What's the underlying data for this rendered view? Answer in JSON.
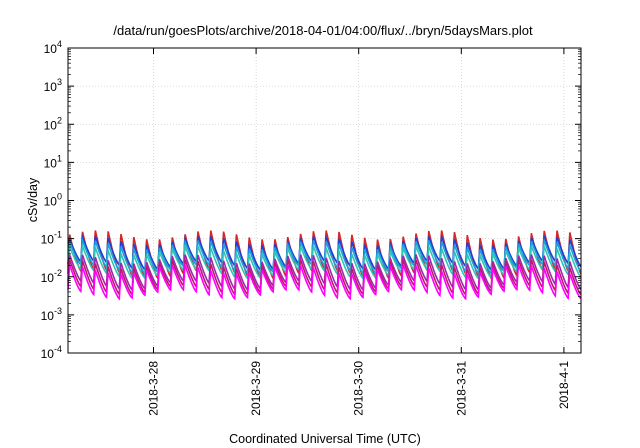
{
  "chart_data": {
    "type": "line",
    "title": "/data/run/goesPlots/archive/2018-04-01/04:00/flux/../bryn/5daysMars.plot",
    "xlabel": "Coordinated Universal Time (UTC)",
    "ylabel": "cSv/day",
    "y_scale": "log",
    "ylim": [
      0.0001,
      10000
    ],
    "y_ticks": [
      {
        "base": "10",
        "exp": "-4",
        "value": 0.0001
      },
      {
        "base": "10",
        "exp": "-3",
        "value": 0.001
      },
      {
        "base": "10",
        "exp": "-2",
        "value": 0.01
      },
      {
        "base": "10",
        "exp": "-1",
        "value": 0.1
      },
      {
        "base": "10",
        "exp": "0",
        "value": 1
      },
      {
        "base": "10",
        "exp": "1",
        "value": 10
      },
      {
        "base": "10",
        "exp": "2",
        "value": 100
      },
      {
        "base": "10",
        "exp": "3",
        "value": 1000
      },
      {
        "base": "10",
        "exp": "4",
        "value": 10000
      }
    ],
    "xlim": [
      "2018-03-27T04:00",
      "2018-04-01T04:00"
    ],
    "x_ticks": [
      "2018-3-28",
      "2018-3-29",
      "2018-3-30",
      "2018-3-31",
      "2018-4-1"
    ],
    "grid": true,
    "pulse_period_hours": 3,
    "series": [
      {
        "color": "#d62728",
        "peak": 0.13,
        "trough": 0.012
      },
      {
        "color": "#1f3fd6",
        "peak": 0.09,
        "trough": 0.02
      },
      {
        "color": "#1a9fd8",
        "peak": 0.07,
        "trough": 0.016
      },
      {
        "color": "#2ec4b6",
        "peak": 0.05,
        "trough": 0.012
      },
      {
        "color": "#9c27b0",
        "peak": 0.03,
        "trough": 0.006
      },
      {
        "color": "#c0186e",
        "peak": 0.022,
        "trough": 0.0045
      },
      {
        "color": "#ff00ff",
        "peak": 0.016,
        "trough": 0.0035
      }
    ]
  }
}
